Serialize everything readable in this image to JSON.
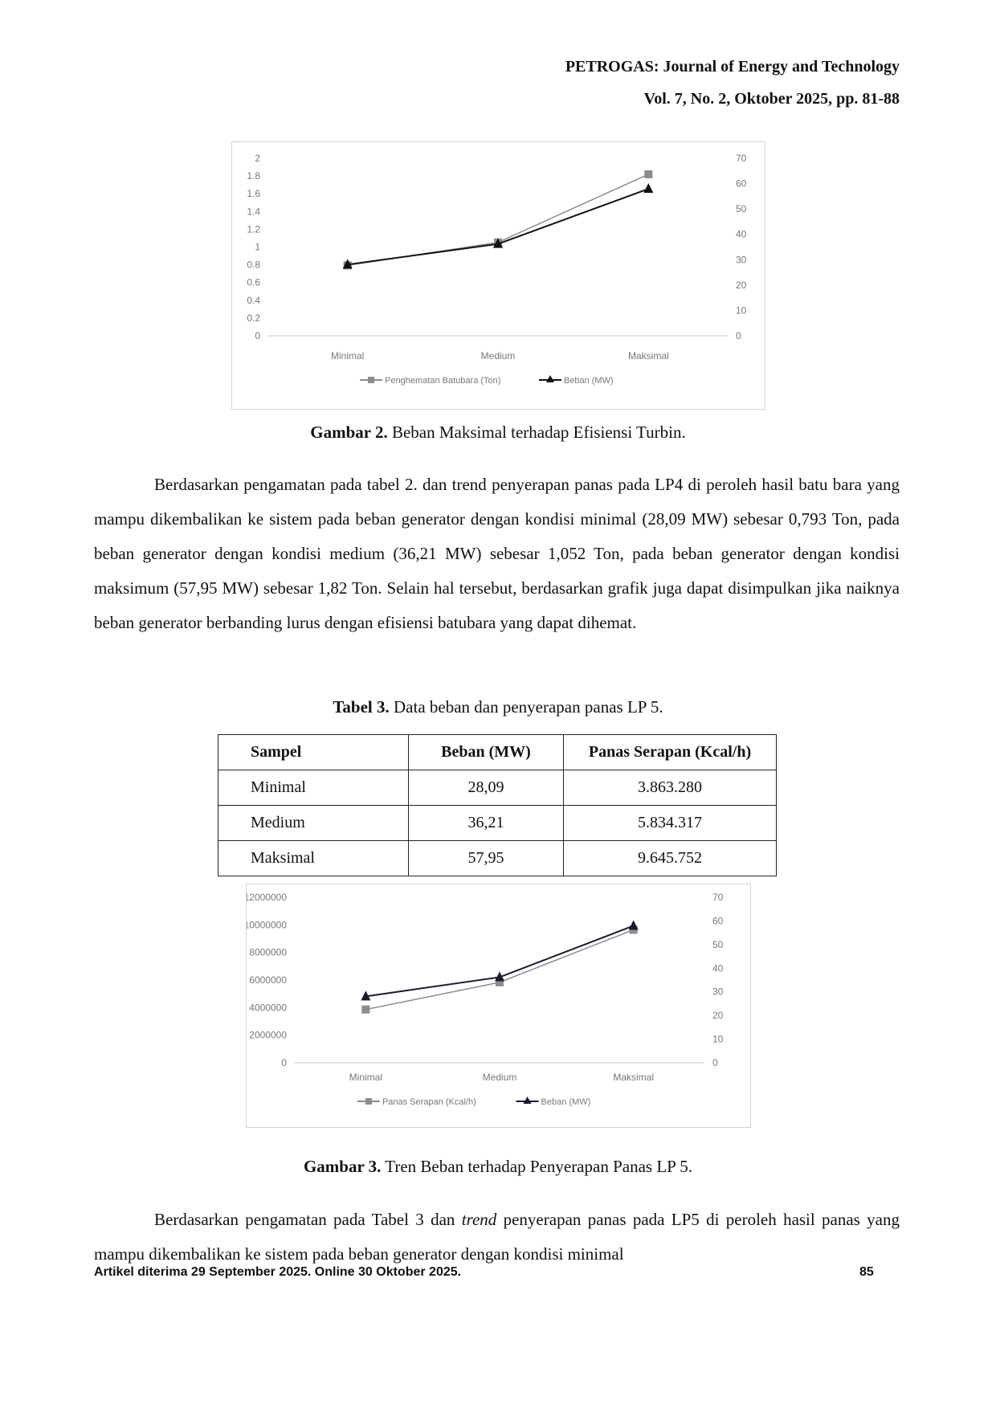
{
  "header": {
    "journal": "PETROGAS: Journal of Energy and Technology",
    "volume": "Vol. 7, No. 2, Oktober 2025, pp. 81-88"
  },
  "figure2": {
    "caption_label": "Gambar 2.",
    "caption_text": " Beban Maksimal terhadap Efisiensi Turbin."
  },
  "paragraph1": "Berdasarkan pengamatan pada tabel 2. dan trend penyerapan panas pada LP4 di peroleh hasil batu bara yang mampu dikembalikan ke sistem pada beban generator dengan kondisi minimal (28,09 MW) sebesar 0,793 Ton, pada beban generator dengan kondisi medium (36,21 MW) sebesar 1,052 Ton, pada beban generator dengan kondisi maksimum (57,95 MW) sebesar 1,82 Ton. Selain hal tersebut, berdasarkan grafik juga dapat disimpulkan jika naiknya beban generator berbanding lurus dengan efisiensi batubara yang dapat dihemat.",
  "table3": {
    "caption_label": "Tabel 3.",
    "caption_text": " Data beban dan penyerapan panas LP 5.",
    "headers": [
      "Sampel",
      "Beban (MW)",
      "Panas Serapan (Kcal/h)"
    ],
    "rows": [
      [
        "Minimal",
        "28,09",
        "3.863.280"
      ],
      [
        "Medium",
        "36,21",
        "5.834.317"
      ],
      [
        "Maksimal",
        "57,95",
        "9.645.752"
      ]
    ]
  },
  "figure3": {
    "caption_label": "Gambar 3.",
    "caption_text": " Tren Beban terhadap Penyerapan Panas LP 5."
  },
  "paragraph2": {
    "before": "Berdasarkan pengamatan pada Tabel 3 dan ",
    "italic": "trend",
    "after": " penyerapan panas pada LP5 di peroleh hasil panas yang mampu dikembalikan ke sistem pada beban generator dengan kondisi minimal"
  },
  "footer": {
    "note": "Artikel diterima 29 September 2025. Online 30 Oktober 2025.",
    "page": "85"
  },
  "chart_data": [
    {
      "type": "line",
      "categories": [
        "Minimal",
        "Medium",
        "Maksimal"
      ],
      "y_left": {
        "range": [
          0,
          2
        ],
        "ticks": [
          "0",
          "0.2",
          "0.4",
          "0.6",
          "0.8",
          "1",
          "1.2",
          "1.4",
          "1.6",
          "1.8",
          "2"
        ]
      },
      "y_right": {
        "range": [
          0,
          70
        ],
        "ticks": [
          "0",
          "10",
          "20",
          "30",
          "40",
          "50",
          "60",
          "70"
        ]
      },
      "series": [
        {
          "name": "Penghematan Batubara (Ton)",
          "axis": "left",
          "marker": "square",
          "color": "#8c8c8c",
          "values": [
            0.793,
            1.052,
            1.82
          ]
        },
        {
          "name": "Beban (MW)",
          "axis": "right",
          "marker": "triangle",
          "color": "#111111",
          "values": [
            28.09,
            36.21,
            57.95
          ]
        }
      ],
      "legend": "bottom",
      "grid": false
    },
    {
      "type": "line",
      "categories": [
        "Minimal",
        "Medium",
        "Maksimal"
      ],
      "y_left": {
        "range": [
          0,
          12000000
        ],
        "ticks": [
          "0",
          "2000000",
          "4000000",
          "6000000",
          "8000000",
          "10000000",
          "12000000"
        ]
      },
      "y_right": {
        "range": [
          0,
          70
        ],
        "ticks": [
          "0",
          "10",
          "20",
          "30",
          "40",
          "50",
          "60",
          "70"
        ]
      },
      "series": [
        {
          "name": "Panas Serapan (Kcal/h)",
          "axis": "left",
          "marker": "square",
          "color": "#8c8c8c",
          "values": [
            3863280,
            5834317,
            9645752
          ]
        },
        {
          "name": "Beban (MW)",
          "axis": "right",
          "marker": "triangle",
          "color": "#1a1a2e",
          "values": [
            28.09,
            36.21,
            57.95
          ]
        }
      ],
      "legend": "bottom",
      "grid": false
    }
  ]
}
